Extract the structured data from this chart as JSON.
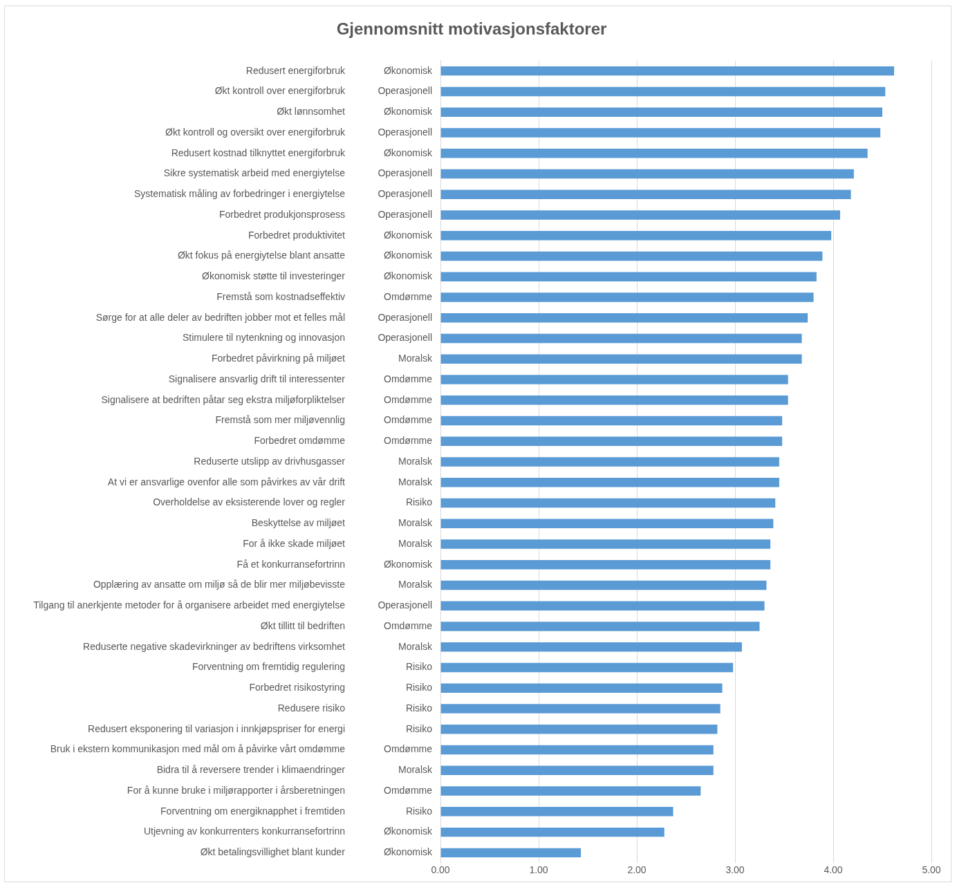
{
  "chart_data": {
    "type": "bar",
    "orientation": "horizontal",
    "title": "Gjennomsnitt motivasjonsfaktorer",
    "categories": [
      "Redusert energiforbruk",
      "Økt kontroll over energiforbruk",
      "Økt lønnsomhet",
      "Økt kontroll og oversikt over energiforbruk",
      "Redusert kostnad tilknyttet energiforbruk",
      "Sikre systematisk arbeid med energiytelse",
      "Systematisk måling av forbedringer i energiytelse",
      "Forbedret produkjonsprosess",
      "Forbedret produktivitet",
      "Økt fokus på energiytelse blant ansatte",
      "Økonomisk støtte til investeringer",
      "Fremstå som kostnadseffektiv",
      "Sørge for at alle deler av bedriften jobber mot et felles mål",
      "Stimulere til nytenkning og innovasjon",
      "Forbedret påvirkning på miljøet",
      "Signalisere ansvarlig drift til interessenter",
      "Signalisere at bedriften påtar seg ekstra miljøforpliktelser",
      "Fremstå som mer miljøvennlig",
      "Forbedret omdømme",
      "Reduserte utslipp av drivhusgasser",
      "At vi er ansvarlige ovenfor alle som påvirkes av vår drift",
      "Overholdelse av eksisterende lover og regler",
      "Beskyttelse av miljøet",
      "For å ikke skade miljøet",
      "Få et konkurransefortrinn",
      "Opplæring av ansatte om miljø så de blir mer miljøbevisste",
      "Tilgang til anerkjente metoder for å organisere arbeidet med energiytelse",
      "Økt tillitt til bedriften",
      "Reduserte negative skadevirkninger av bedriftens virksomhet",
      "Forventning om fremtidig regulering",
      "Forbedret risikostyring",
      "Redusere risiko",
      "Redusert eksponering til variasjon i innkjøpspriser for energi",
      "Bruk i ekstern kommunikasjon med mål om å påvirke vårt omdømme",
      "Bidra til å reversere trender i klimaendringer",
      "For å kunne bruke i miljørapporter i årsberetningen",
      "Forventning om energiknapphet i fremtiden",
      "Utjevning av konkurrenters konkurransefortrinn",
      "Økt betalingsvillighet blant kunder"
    ],
    "y2_categories": [
      "Økonomisk",
      "Operasjonell",
      "Økonomisk",
      "Operasjonell",
      "Økonomisk",
      "Operasjonell",
      "Operasjonell",
      "Operasjonell",
      "Økonomisk",
      "Økonomisk",
      "Økonomisk",
      "Omdømme",
      "Operasjonell",
      "Operasjonell",
      "Moralsk",
      "Omdømme",
      "Omdømme",
      "Omdømme",
      "Omdømme",
      "Moralsk",
      "Moralsk",
      "Risiko",
      "Moralsk",
      "Moralsk",
      "Økonomisk",
      "Moralsk",
      "Operasjonell",
      "Omdømme",
      "Moralsk",
      "Risiko",
      "Risiko",
      "Risiko",
      "Risiko",
      "Omdømme",
      "Moralsk",
      "Omdømme",
      "Risiko",
      "Økonomisk",
      "Økonomisk"
    ],
    "values": [
      4.62,
      4.53,
      4.5,
      4.48,
      4.35,
      4.21,
      4.18,
      4.07,
      3.98,
      3.89,
      3.83,
      3.8,
      3.74,
      3.68,
      3.68,
      3.54,
      3.54,
      3.48,
      3.48,
      3.45,
      3.45,
      3.41,
      3.39,
      3.36,
      3.36,
      3.32,
      3.3,
      3.25,
      3.07,
      2.98,
      2.87,
      2.85,
      2.82,
      2.78,
      2.78,
      2.65,
      2.37,
      2.28,
      1.43
    ],
    "color": "#5b9bd5",
    "xlim": [
      0,
      5
    ],
    "xticks": [
      {
        "value": 0,
        "label": "0.00"
      },
      {
        "value": 1,
        "label": "1.00"
      },
      {
        "value": 2,
        "label": "2.00"
      },
      {
        "value": 3,
        "label": "3.00"
      },
      {
        "value": 4,
        "label": "4.00"
      },
      {
        "value": 5,
        "label": "5.00"
      }
    ],
    "grid": "x",
    "legend": false
  }
}
